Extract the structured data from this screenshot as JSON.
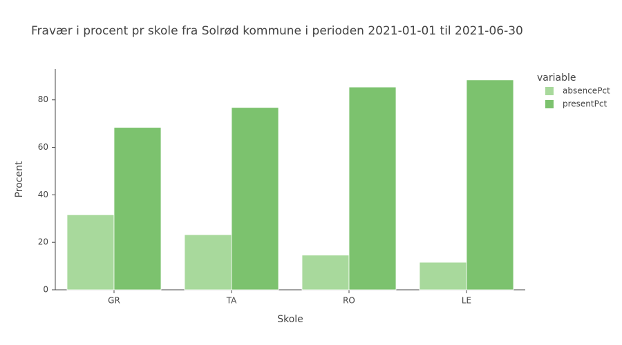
{
  "chart_data": {
    "type": "bar",
    "title": "Fravær i procent pr skole fra Solrød kommune i perioden 2021-01-01 til 2021-06-30",
    "x_label": "Skole",
    "y_label": "Procent",
    "legend_title": "variable",
    "categories": [
      "GR",
      "TA",
      "RO",
      "LE"
    ],
    "series": [
      {
        "name": "absencePct",
        "color": "#a8d99c",
        "values": [
          31.6,
          23.2,
          14.6,
          11.6
        ]
      },
      {
        "name": "presentPct",
        "color": "#7cc26e",
        "values": [
          68.4,
          76.8,
          85.4,
          88.4
        ]
      }
    ],
    "ylim": [
      0,
      93
    ],
    "yticks": [
      0,
      20,
      40,
      60,
      80
    ],
    "grid": false
  }
}
